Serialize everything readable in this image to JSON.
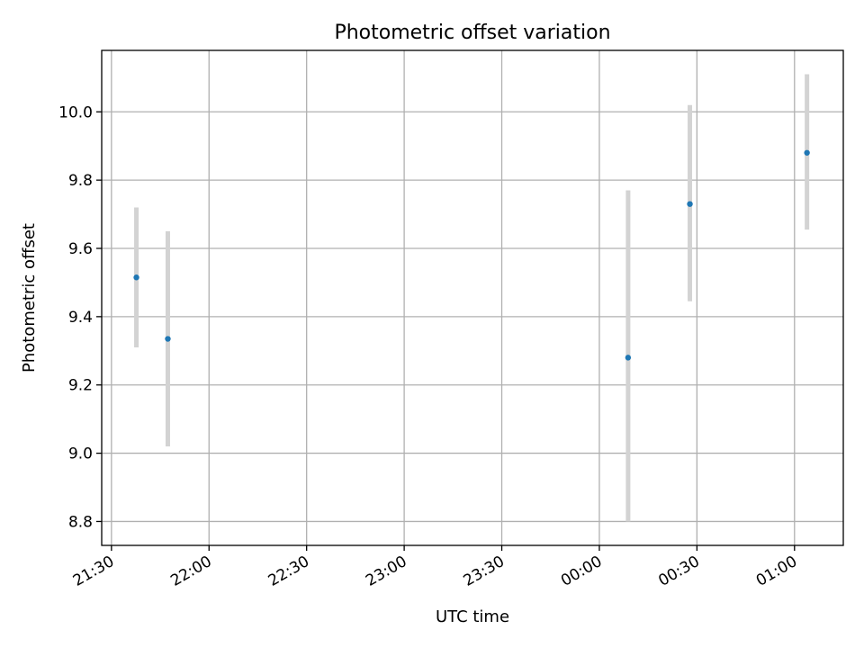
{
  "chart_data": {
    "type": "scatter",
    "title": "Photometric offset variation",
    "xlabel": "UTC time",
    "ylabel": "Photometric offset",
    "x_axis": {
      "kind": "time",
      "ticks": [
        "21:30",
        "22:00",
        "22:30",
        "23:00",
        "23:30",
        "00:00",
        "00:30",
        "01:00"
      ],
      "range": [
        "21:27",
        "01:15"
      ]
    },
    "y_axis": {
      "ticks": [
        "8.8",
        "9.0",
        "9.2",
        "9.4",
        "9.6",
        "9.8",
        "10.0"
      ],
      "range": [
        8.73,
        10.18
      ]
    },
    "grid": true,
    "points": [
      {
        "time": "21:37:40",
        "value": 9.515,
        "err_low": 9.31,
        "err_high": 9.72
      },
      {
        "time": "21:47:20",
        "value": 9.335,
        "err_low": 9.02,
        "err_high": 9.65
      },
      {
        "time": "00:08:50",
        "value": 9.28,
        "err_low": 8.8,
        "err_high": 9.77
      },
      {
        "time": "00:27:50",
        "value": 9.73,
        "err_low": 9.445,
        "err_high": 10.02
      },
      {
        "time": "01:03:50",
        "value": 9.88,
        "err_low": 9.655,
        "err_high": 10.11
      }
    ],
    "colors": {
      "point": "#1f77b4",
      "errorbar": "#d3d3d3",
      "grid": "#b0b0b0"
    }
  }
}
